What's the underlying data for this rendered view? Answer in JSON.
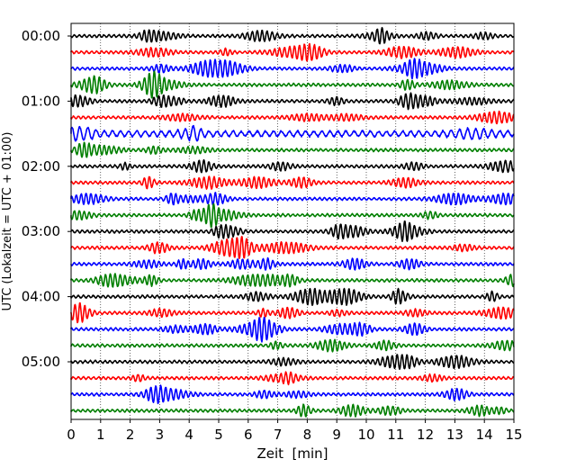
{
  "chart_data": {
    "type": "line",
    "title": "",
    "xlabel": "Zeit  [min]",
    "ylabel": "UTC (Lokalzeit = UTC + 01:00)",
    "xlim": [
      0,
      15
    ],
    "x_ticks": [
      0,
      1,
      2,
      3,
      4,
      5,
      6,
      7,
      8,
      9,
      10,
      11,
      12,
      13,
      14,
      15
    ],
    "x_tick_labels": [
      "0",
      "1",
      "2",
      "3",
      "4",
      "5",
      "6",
      "7",
      "8",
      "9",
      "10",
      "11",
      "12",
      "13",
      "14",
      "15"
    ],
    "y_tick_labels": [
      "00:00",
      "01:00",
      "02:00",
      "03:00",
      "04:00",
      "05:00"
    ],
    "traces_per_hour": 4,
    "minutes_per_trace": 15,
    "trace_start_times": [
      "00:00",
      "00:15",
      "00:30",
      "00:45",
      "01:00",
      "01:15",
      "01:30",
      "01:45",
      "02:00",
      "02:15",
      "02:30",
      "02:45",
      "03:00",
      "03:15",
      "03:30",
      "03:45",
      "04:00",
      "04:15",
      "04:30",
      "04:45",
      "05:00",
      "05:15",
      "05:30",
      "05:45"
    ],
    "trace_colors": [
      "#000000",
      "#ff0000",
      "#0000ff",
      "#007f00"
    ],
    "grid": {
      "vertical_dotted": true,
      "horizontal": false
    },
    "legend": "none"
  }
}
